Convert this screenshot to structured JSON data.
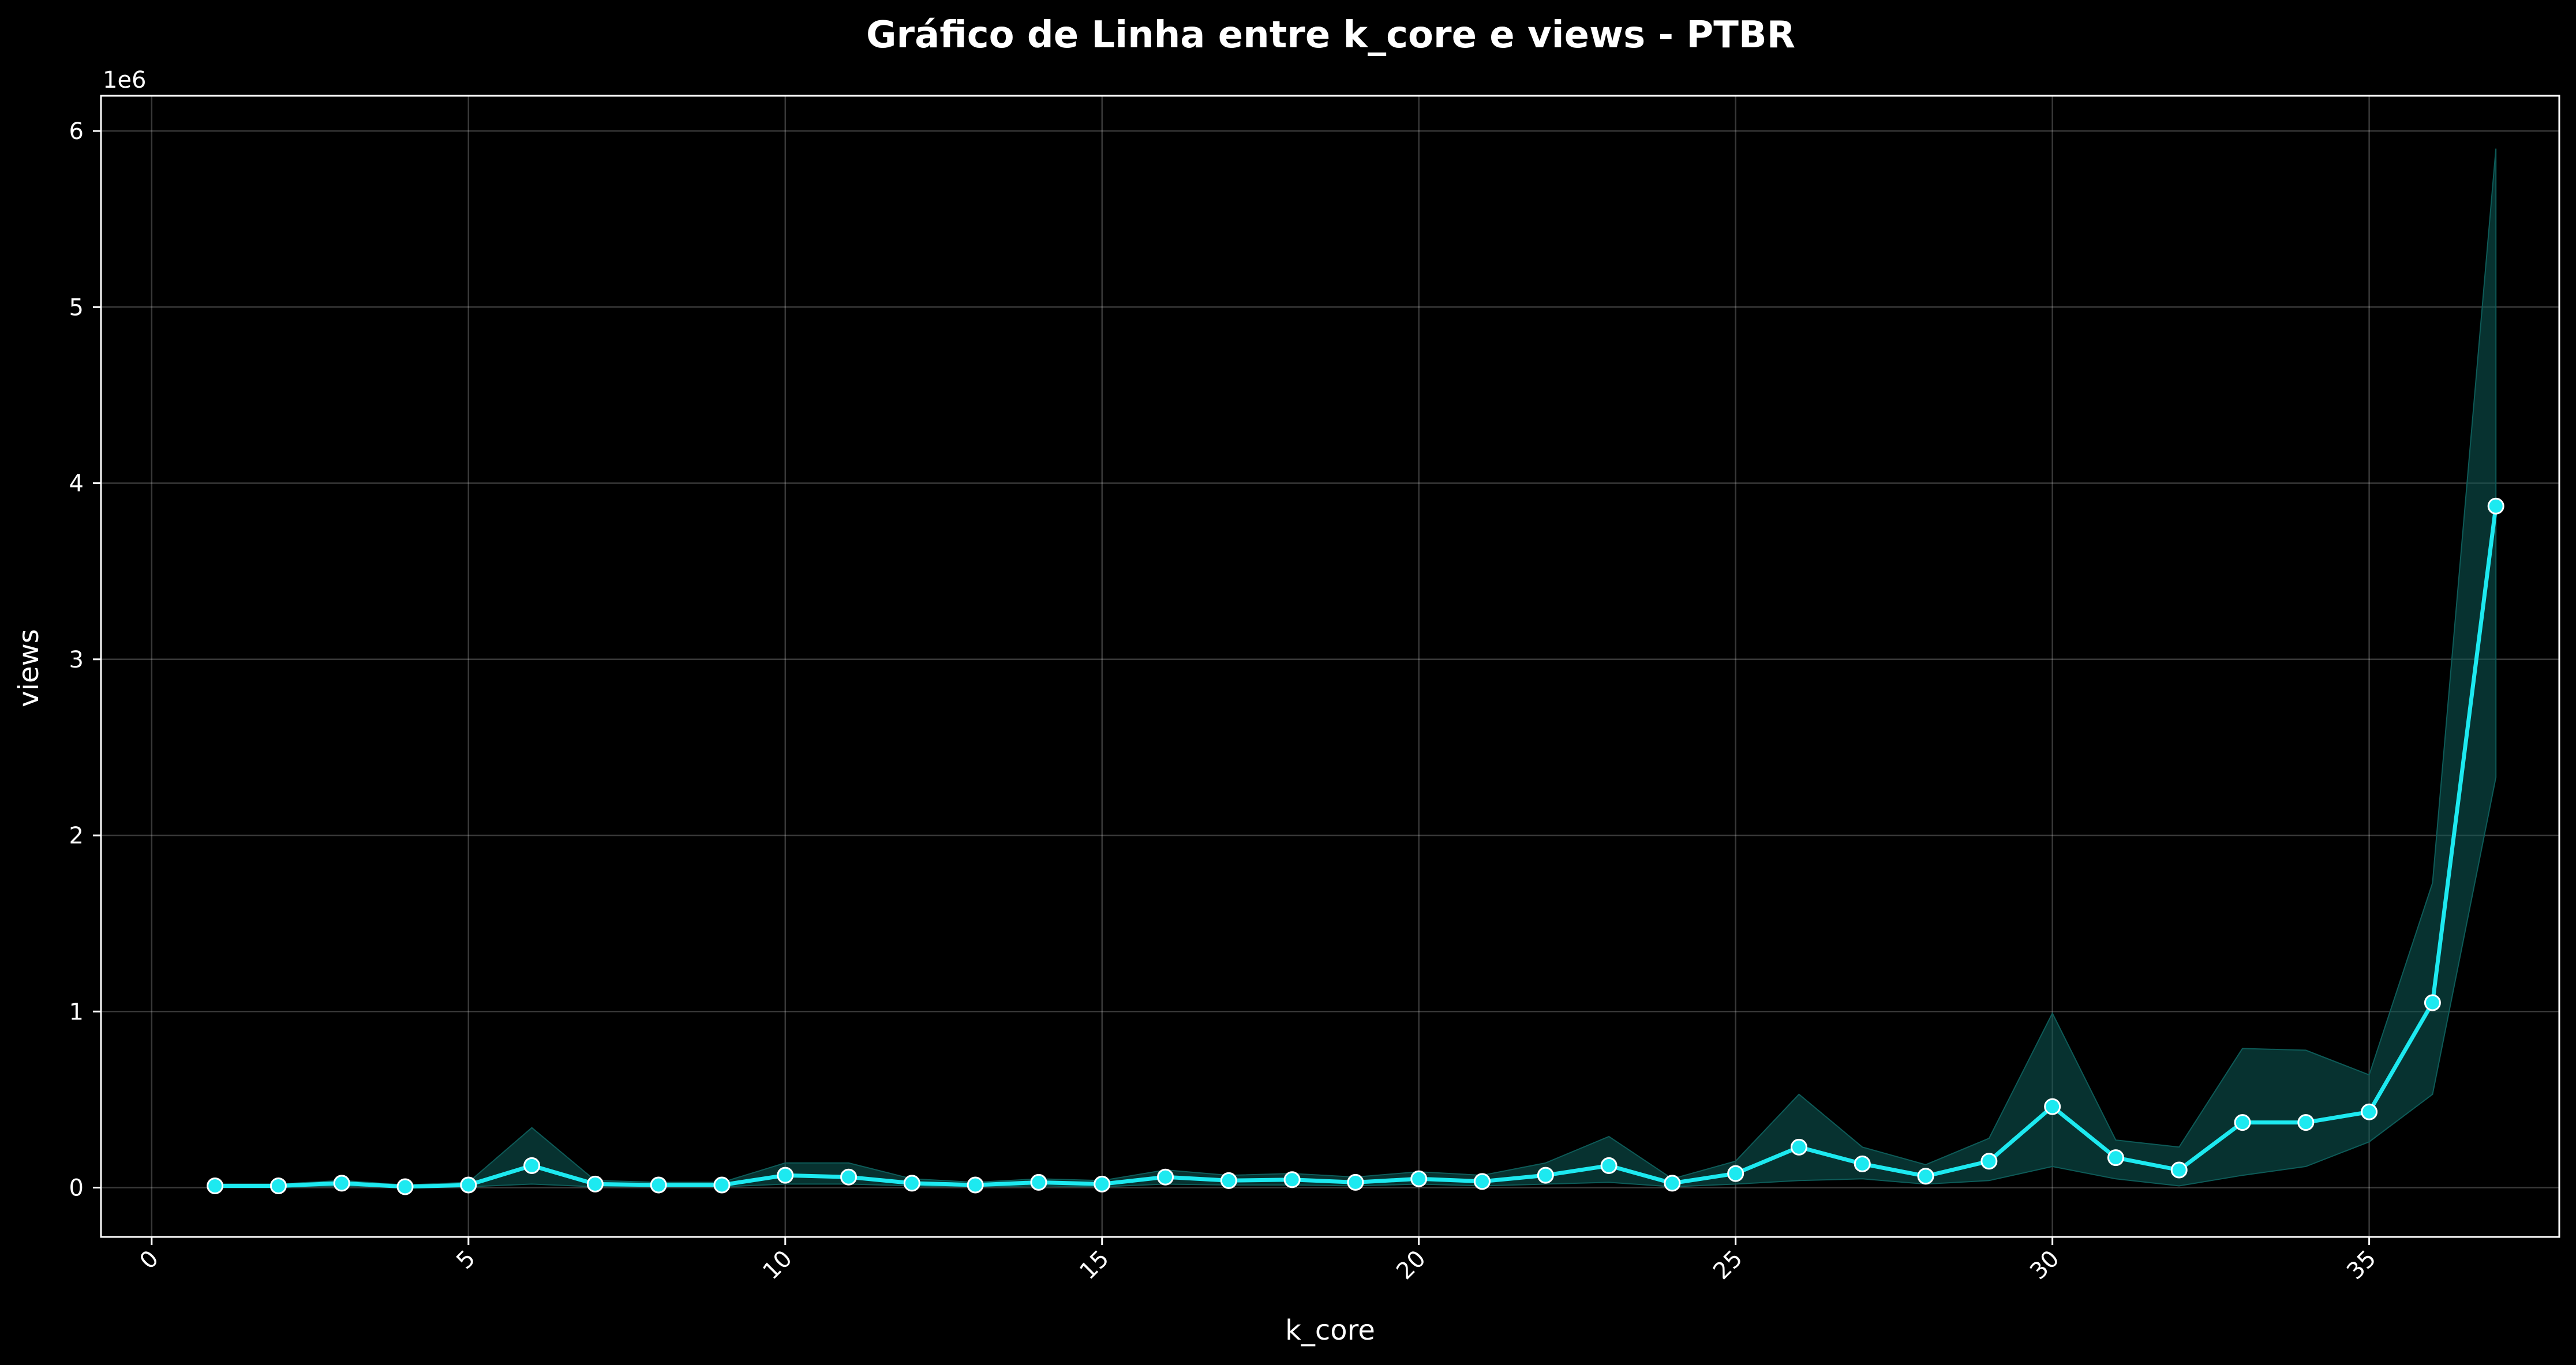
{
  "chart_data": {
    "type": "line",
    "title": "Gráfico de Linha entre k_core e views - PTBR",
    "xlabel": "k_core",
    "ylabel": "views",
    "y_offset_label": "1e6",
    "xlim": [
      -0.8,
      38.0
    ],
    "ylim": [
      -0.28,
      6.2
    ],
    "x_ticks": [
      0,
      5,
      10,
      15,
      20,
      25,
      30,
      35
    ],
    "x_tick_labels": [
      "0",
      "5",
      "10",
      "15",
      "20",
      "25",
      "30",
      "35"
    ],
    "y_ticks": [
      0,
      1,
      2,
      3,
      4,
      5,
      6
    ],
    "y_tick_labels": [
      "0",
      "1",
      "2",
      "3",
      "4",
      "5",
      "6"
    ],
    "grid": true,
    "colors": {
      "line": "#1de9f0",
      "band": "#0d5b58",
      "marker_edge": "#ffffff",
      "background": "#000000"
    },
    "series": [
      {
        "name": "views",
        "x": [
          1,
          2,
          3,
          4,
          5,
          6,
          7,
          8,
          9,
          10,
          11,
          12,
          13,
          14,
          15,
          16,
          17,
          18,
          19,
          20,
          21,
          22,
          23,
          24,
          25,
          26,
          27,
          28,
          29,
          30,
          31,
          32,
          33,
          34,
          35,
          36,
          37
        ],
        "values": [
          0.01,
          0.01,
          0.025,
          0.005,
          0.015,
          0.125,
          0.02,
          0.015,
          0.015,
          0.07,
          0.06,
          0.025,
          0.015,
          0.03,
          0.02,
          0.06,
          0.04,
          0.045,
          0.03,
          0.05,
          0.035,
          0.07,
          0.125,
          0.025,
          0.08,
          0.23,
          0.135,
          0.065,
          0.15,
          0.46,
          0.17,
          0.1,
          0.37,
          0.37,
          0.43,
          1.05,
          3.87
        ],
        "ci_lower": [
          0.0,
          0.0,
          0.01,
          0.0,
          0.005,
          0.02,
          0.005,
          0.005,
          0.005,
          0.02,
          0.02,
          0.01,
          0.005,
          0.01,
          0.005,
          0.02,
          0.015,
          0.015,
          0.01,
          0.02,
          0.01,
          0.02,
          0.03,
          0.005,
          0.02,
          0.04,
          0.05,
          0.02,
          0.04,
          0.12,
          0.05,
          0.01,
          0.07,
          0.12,
          0.26,
          0.53,
          2.33
        ],
        "ci_upper": [
          0.02,
          0.02,
          0.04,
          0.015,
          0.03,
          0.34,
          0.04,
          0.03,
          0.03,
          0.14,
          0.14,
          0.05,
          0.03,
          0.05,
          0.04,
          0.1,
          0.07,
          0.08,
          0.06,
          0.09,
          0.07,
          0.14,
          0.29,
          0.05,
          0.15,
          0.53,
          0.23,
          0.13,
          0.28,
          0.99,
          0.27,
          0.23,
          0.79,
          0.78,
          0.64,
          1.73,
          5.9
        ]
      }
    ]
  }
}
